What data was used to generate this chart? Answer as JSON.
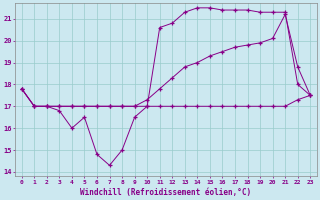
{
  "xlabel": "Windchill (Refroidissement éolien,°C)",
  "bg_color": "#cce8f0",
  "line_color": "#880088",
  "grid_color": "#99cccc",
  "xmin": -0.5,
  "xmax": 23.5,
  "ymin": 13.8,
  "ymax": 21.7,
  "yticks": [
    14,
    15,
    16,
    17,
    18,
    19,
    20,
    21
  ],
  "xticks": [
    0,
    1,
    2,
    3,
    4,
    5,
    6,
    7,
    8,
    9,
    10,
    11,
    12,
    13,
    14,
    15,
    16,
    17,
    18,
    19,
    20,
    21,
    22,
    23
  ],
  "series1_x": [
    0,
    1,
    2,
    3,
    4,
    5,
    6,
    7,
    8,
    9,
    10,
    11,
    12,
    13,
    14,
    15,
    16,
    17,
    18,
    19,
    20,
    21,
    22,
    23
  ],
  "series1_y": [
    17.8,
    17.0,
    17.0,
    16.8,
    16.0,
    16.5,
    14.8,
    14.3,
    15.0,
    16.5,
    17.0,
    17.0,
    17.0,
    17.0,
    17.0,
    17.0,
    17.0,
    17.0,
    17.0,
    17.0,
    17.0,
    17.0,
    17.3,
    17.5
  ],
  "series2_x": [
    0,
    1,
    2,
    3,
    4,
    5,
    6,
    7,
    8,
    9,
    10,
    11,
    12,
    13,
    14,
    15,
    16,
    17,
    18,
    19,
    20,
    21,
    22,
    23
  ],
  "series2_y": [
    17.8,
    17.0,
    17.0,
    17.0,
    17.0,
    17.0,
    17.0,
    17.0,
    17.0,
    17.0,
    17.3,
    17.8,
    18.3,
    18.8,
    19.0,
    19.3,
    19.5,
    19.7,
    19.8,
    19.9,
    20.1,
    21.2,
    18.8,
    17.5
  ],
  "series3_x": [
    0,
    1,
    2,
    3,
    4,
    5,
    6,
    7,
    8,
    9,
    10,
    11,
    12,
    13,
    14,
    15,
    16,
    17,
    18,
    19,
    20,
    21,
    22,
    23
  ],
  "series3_y": [
    17.8,
    17.0,
    17.0,
    17.0,
    17.0,
    17.0,
    17.0,
    17.0,
    17.0,
    17.0,
    17.0,
    20.6,
    20.8,
    21.3,
    21.5,
    21.5,
    21.4,
    21.4,
    21.4,
    21.3,
    21.3,
    21.3,
    18.0,
    17.5
  ]
}
